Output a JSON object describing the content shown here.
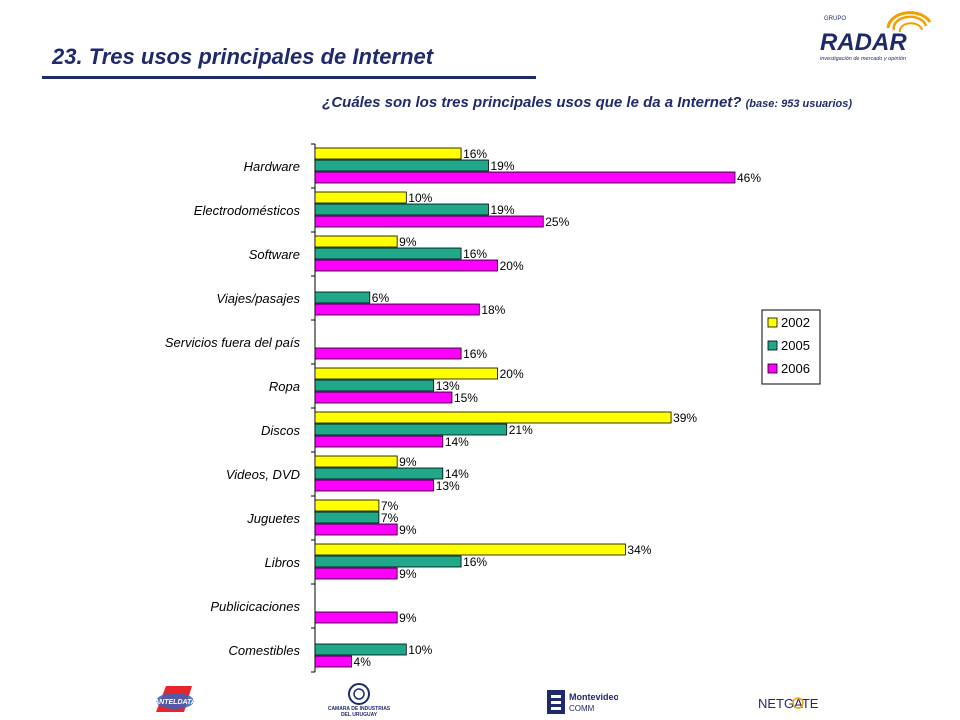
{
  "header": {
    "title": "23. Tres usos principales de Internet",
    "question": "¿Cuáles son los tres principales usos que le da a Internet?",
    "base": "(base: 953 usuarios)"
  },
  "brand": {
    "radar_top": "GRUPO",
    "radar_name": "RADAR",
    "radar_tagline": "investigación de mercado y opinión"
  },
  "footer": {
    "antel": "ANTELDATA",
    "ciu_line1": "CAMARA DE INDUSTRIAS",
    "ciu_line2": "DEL URUGUAY",
    "montevideo_line1": "Montevideo",
    "montevideo_line2": "COMM",
    "netgate": "NETGATE"
  },
  "colors": {
    "2002": "#ffff00",
    "2005": "#1fa88a",
    "2006": "#ff00ff",
    "title": "#1f2a6b"
  },
  "chart_data": {
    "type": "bar",
    "orientation": "horizontal",
    "categories": [
      "Hardware",
      "Electrodomésticos",
      "Software",
      "Viajes/pasajes",
      "Servicios fuera del país",
      "Ropa",
      "Discos",
      "Videos, DVD",
      "Juguetes",
      "Libros",
      "Publicicaciones",
      "Comestibles"
    ],
    "series": [
      {
        "name": "2002",
        "values": [
          16,
          10,
          9,
          null,
          null,
          20,
          39,
          9,
          7,
          34,
          null,
          null
        ]
      },
      {
        "name": "2005",
        "values": [
          19,
          19,
          16,
          6,
          null,
          13,
          21,
          14,
          7,
          16,
          null,
          10
        ]
      },
      {
        "name": "2006",
        "values": [
          46,
          25,
          20,
          18,
          16,
          15,
          14,
          13,
          9,
          9,
          9,
          4
        ]
      }
    ],
    "value_suffix": "%",
    "xlim": [
      0,
      50
    ],
    "legend_position": "right",
    "grid": false
  }
}
